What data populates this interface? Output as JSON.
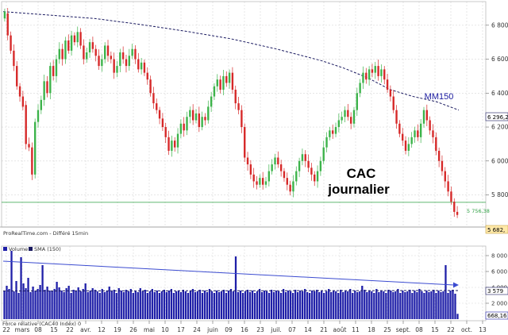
{
  "colors": {
    "up": "#3cb34a",
    "down": "#d62828",
    "ma": "#1a1a60",
    "support": "#2ea043",
    "volume": "#1f1fa8",
    "volume_sma": "#1a1a60",
    "trend": "#3b4bd0",
    "grid": "#d7d7d7",
    "tag_support": "#ffffff",
    "tag_price": "#ffe9a8"
  },
  "source_label": "ProRealTime.com - Différé 15min",
  "legend": {
    "volume": "Volume",
    "sma": "SMA (150)"
  },
  "footer_label": "Force relative (CAC40 Index) 0",
  "annotations": {
    "title_line1": "CAC",
    "title_line2": "journalier",
    "ma_label": "MM150"
  },
  "chart_data": {
    "type": "candlestick",
    "title": "CAC journalier",
    "y_ticks": [
      5800,
      6000,
      6200,
      6400,
      6600,
      6800
    ],
    "y_tick_labels": [
      "5 800",
      "6 000",
      "6 200",
      "6 400",
      "6 600",
      "6 800"
    ],
    "ylim": [
      5620,
      6930
    ],
    "x_ticks": [
      "22",
      "mars",
      "08",
      "15",
      "22",
      "avr.",
      "12",
      "19",
      "26",
      "mai",
      "10",
      "17",
      "24",
      "juin",
      "09",
      "16",
      "23",
      "juil.",
      "07",
      "14",
      "21",
      "août",
      "11",
      "18",
      "25",
      "sept.",
      "08",
      "15",
      "22",
      "oct.",
      "13"
    ],
    "grid": true,
    "support_level": 5756.38,
    "support_label": "5 756,38",
    "ma_tag": "6 296,2",
    "last_price_tag": "5 682,",
    "ma150": [
      [
        0,
        6880
      ],
      [
        20,
        6860
      ],
      [
        40,
        6840
      ],
      [
        60,
        6805
      ],
      [
        80,
        6765
      ],
      [
        100,
        6720
      ],
      [
        120,
        6660
      ],
      [
        140,
        6590
      ],
      [
        150,
        6545
      ],
      [
        160,
        6490
      ],
      [
        170,
        6420
      ],
      [
        180,
        6380
      ],
      [
        190,
        6350
      ],
      [
        200,
        6300
      ]
    ],
    "candles": [
      [
        6840,
        6880
      ],
      [
        6870,
        6740
      ],
      [
        6740,
        6650
      ],
      [
        6650,
        6560
      ],
      [
        6560,
        6440
      ],
      [
        6440,
        6380
      ],
      [
        6380,
        6320
      ],
      [
        6330,
        6100
      ],
      [
        6100,
        6080
      ],
      [
        6080,
        5920
      ],
      [
        5920,
        6230
      ],
      [
        6230,
        6300
      ],
      [
        6300,
        6360
      ],
      [
        6360,
        6470
      ],
      [
        6470,
        6400
      ],
      [
        6400,
        6560
      ],
      [
        6560,
        6500
      ],
      [
        6500,
        6600
      ],
      [
        6600,
        6660
      ],
      [
        6660,
        6600
      ],
      [
        6600,
        6710
      ],
      [
        6710,
        6650
      ],
      [
        6650,
        6740
      ],
      [
        6740,
        6700
      ],
      [
        6700,
        6760
      ],
      [
        6760,
        6680
      ],
      [
        6680,
        6600
      ],
      [
        6600,
        6640
      ],
      [
        6640,
        6700
      ],
      [
        6700,
        6660
      ],
      [
        6660,
        6620
      ],
      [
        6620,
        6560
      ],
      [
        6560,
        6600
      ],
      [
        6600,
        6680
      ],
      [
        6680,
        6620
      ],
      [
        6620,
        6600
      ],
      [
        6600,
        6520
      ],
      [
        6520,
        6560
      ],
      [
        6560,
        6640
      ],
      [
        6640,
        6600
      ],
      [
        6600,
        6560
      ],
      [
        6560,
        6620
      ],
      [
        6620,
        6660
      ],
      [
        6660,
        6600
      ],
      [
        6600,
        6540
      ],
      [
        6540,
        6580
      ],
      [
        6580,
        6520
      ],
      [
        6520,
        6480
      ],
      [
        6480,
        6400
      ],
      [
        6400,
        6340
      ],
      [
        6340,
        6300
      ],
      [
        6300,
        6250
      ],
      [
        6250,
        6200
      ],
      [
        6200,
        6140
      ],
      [
        6140,
        6060
      ],
      [
        6060,
        6120
      ],
      [
        6120,
        6080
      ],
      [
        6080,
        6160
      ],
      [
        6160,
        6220
      ],
      [
        6220,
        6180
      ],
      [
        6180,
        6260
      ],
      [
        6260,
        6300
      ],
      [
        6300,
        6240
      ],
      [
        6240,
        6280
      ],
      [
        6280,
        6200
      ],
      [
        6200,
        6260
      ],
      [
        6260,
        6240
      ],
      [
        6240,
        6320
      ],
      [
        6320,
        6380
      ],
      [
        6380,
        6440
      ],
      [
        6440,
        6480
      ],
      [
        6480,
        6420
      ],
      [
        6420,
        6500
      ],
      [
        6500,
        6460
      ],
      [
        6460,
        6520
      ],
      [
        6520,
        6420
      ],
      [
        6420,
        6340
      ],
      [
        6340,
        6300
      ],
      [
        6300,
        6200
      ],
      [
        6200,
        6020
      ],
      [
        6020,
        5980
      ],
      [
        5980,
        5920
      ],
      [
        5920,
        5880
      ],
      [
        5880,
        5860
      ],
      [
        5860,
        5900
      ],
      [
        5900,
        5860
      ],
      [
        5860,
        5880
      ],
      [
        5880,
        5940
      ],
      [
        5940,
        5980
      ],
      [
        5980,
        6020
      ],
      [
        6020,
        5980
      ],
      [
        5980,
        5940
      ],
      [
        5940,
        5900
      ],
      [
        5900,
        5860
      ],
      [
        5860,
        5820
      ],
      [
        5820,
        5880
      ],
      [
        5880,
        5940
      ],
      [
        5940,
        6000
      ],
      [
        6000,
        6040
      ],
      [
        6040,
        6000
      ],
      [
        6000,
        5960
      ],
      [
        5960,
        5920
      ],
      [
        5920,
        5880
      ],
      [
        5880,
        5940
      ],
      [
        5940,
        6000
      ],
      [
        6000,
        6080
      ],
      [
        6080,
        6140
      ],
      [
        6140,
        6180
      ],
      [
        6180,
        6160
      ],
      [
        6160,
        6200
      ],
      [
        6200,
        6240
      ],
      [
        6240,
        6260
      ],
      [
        6260,
        6300
      ],
      [
        6300,
        6260
      ],
      [
        6260,
        6220
      ],
      [
        6220,
        6300
      ],
      [
        6300,
        6400
      ],
      [
        6400,
        6460
      ],
      [
        6460,
        6520
      ],
      [
        6520,
        6480
      ],
      [
        6480,
        6540
      ],
      [
        6540,
        6520
      ],
      [
        6520,
        6560
      ],
      [
        6560,
        6500
      ],
      [
        6500,
        6540
      ],
      [
        6540,
        6480
      ],
      [
        6480,
        6420
      ],
      [
        6420,
        6380
      ],
      [
        6380,
        6300
      ],
      [
        6300,
        6220
      ],
      [
        6220,
        6160
      ],
      [
        6160,
        6120
      ],
      [
        6120,
        6060
      ],
      [
        6060,
        6100
      ],
      [
        6100,
        6140
      ],
      [
        6140,
        6180
      ],
      [
        6180,
        6140
      ],
      [
        6140,
        6220
      ],
      [
        6220,
        6300
      ],
      [
        6300,
        6240
      ],
      [
        6240,
        6180
      ],
      [
        6180,
        6140
      ],
      [
        6140,
        6060
      ],
      [
        6060,
        6000
      ],
      [
        6000,
        5940
      ],
      [
        5940,
        5880
      ],
      [
        5880,
        5820
      ],
      [
        5820,
        5760
      ],
      [
        5760,
        5700
      ],
      [
        5700,
        5682
      ]
    ],
    "volume_ticks": [
      2000,
      4000,
      6000,
      8000
    ],
    "volume_tick_labels": [
      "2 000",
      "4 000",
      "6 000",
      "8 000"
    ],
    "volume_ylim": [
      0,
      9000
    ],
    "volume_sma_tag": "3 579",
    "volume_last_tag": "668,16",
    "volume_sma_line": [
      [
        0,
        3550
      ],
      [
        200,
        3600
      ]
    ],
    "volume_trend": [
      [
        0,
        7300
      ],
      [
        200,
        4300
      ]
    ],
    "volume": [
      3600,
      4200,
      3800,
      8600,
      3500,
      4800,
      3300,
      7800,
      4500,
      3900,
      5200,
      3400,
      4100,
      3600,
      3800,
      4300,
      6800,
      3700,
      4100,
      3600,
      3500,
      3800,
      4700,
      4000,
      3600,
      3400,
      3900,
      4200,
      3300,
      3700,
      3600,
      4000,
      3500,
      3800,
      4500,
      3400,
      3600,
      3900,
      3700,
      3500,
      3300,
      3800,
      3400,
      3600,
      4100,
      3500,
      3700,
      3300,
      3900,
      3600,
      3400,
      3700,
      3500,
      3800,
      3300,
      3600,
      3400,
      3900,
      3500,
      3700,
      3300,
      3500,
      3800,
      3400,
      3600,
      3300,
      3500,
      3700,
      3400,
      3600,
      3800,
      3300,
      3500,
      3600,
      3400,
      3700,
      3500,
      3300,
      3600,
      3800,
      3400,
      3500,
      3700,
      3300,
      3600,
      3400,
      3800,
      3500,
      3300,
      3600,
      3400,
      3500,
      3700,
      3300,
      3600,
      3800,
      3500,
      7900,
      3400,
      3600,
      3300,
      3500,
      3700,
      3400,
      3600,
      3300,
      3500,
      3800,
      3400,
      3600,
      3500,
      3300,
      3700,
      3400,
      3600,
      3500,
      3300,
      3800,
      3400,
      3600,
      3500,
      3300,
      3700,
      3400,
      3600,
      3500,
      3800,
      3400,
      3300,
      3600,
      3500,
      3700,
      3400,
      3600,
      3300,
      3500,
      3800,
      3400,
      3600,
      3500,
      3300,
      3700,
      3400,
      3600,
      3500,
      3800,
      3300,
      3600,
      3400,
      3500,
      4200,
      3700,
      3400,
      3600,
      3500,
      3300,
      3800,
      3400,
      3600,
      3500,
      3300,
      3700,
      3600,
      3400,
      3500,
      3800,
      3300,
      3600,
      3400,
      3500,
      3700,
      3300,
      3600,
      3400,
      3800,
      3500,
      3300,
      3600,
      3400,
      3500,
      3700,
      3300,
      3600,
      3400,
      3500,
      6800,
      3300,
      3600,
      3700,
      3200,
      668
    ]
  }
}
